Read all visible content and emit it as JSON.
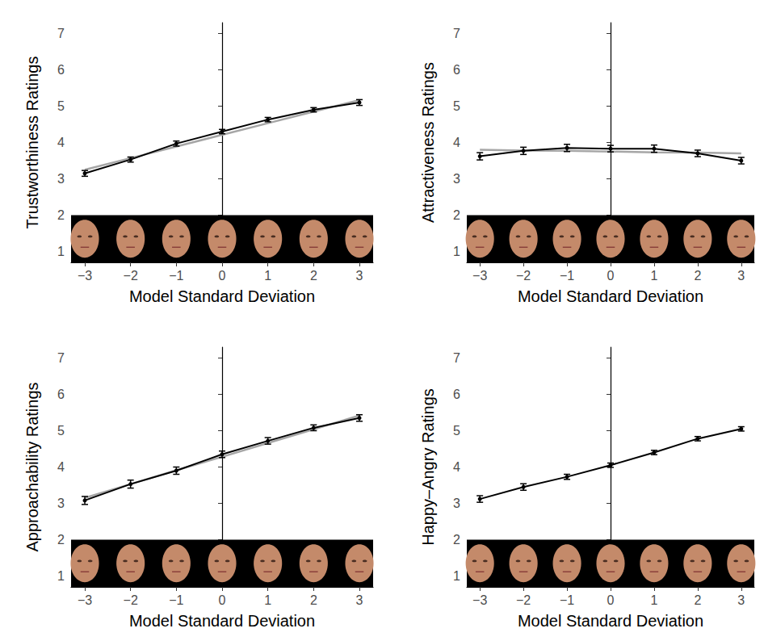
{
  "chart_data": [
    {
      "type": "line",
      "x_label": "Model Standard Deviation",
      "y_label": "Trustworthiness Ratings",
      "x": [
        -3,
        -2,
        -1,
        0,
        1,
        2,
        3
      ],
      "xlim": [
        -3.3,
        3.3
      ],
      "xticks": [
        -3,
        -2,
        -1,
        0,
        1,
        2,
        3
      ],
      "ylim": [
        0.7,
        7.3
      ],
      "yticks": [
        1,
        2,
        3,
        4,
        5,
        6,
        7
      ],
      "grid": false,
      "series": [
        {
          "color": "#a6a6a6",
          "marker": "none",
          "values": [
            3.25,
            3.57,
            3.89,
            4.21,
            4.53,
            4.85,
            5.17
          ]
        },
        {
          "color": "#000000",
          "marker": "circle",
          "values": [
            3.15,
            3.53,
            3.97,
            4.3,
            4.63,
            4.9,
            5.1
          ],
          "errors": [
            0.08,
            0.07,
            0.07,
            0.06,
            0.06,
            0.06,
            0.08
          ]
        }
      ]
    },
    {
      "type": "line",
      "x_label": "Model Standard Deviation",
      "y_label": "Attractiveness Ratings",
      "x": [
        -3,
        -2,
        -1,
        0,
        1,
        2,
        3
      ],
      "xlim": [
        -3.3,
        3.3
      ],
      "xticks": [
        -3,
        -2,
        -1,
        0,
        1,
        2,
        3
      ],
      "ylim": [
        0.7,
        7.3
      ],
      "yticks": [
        1,
        2,
        3,
        4,
        5,
        6,
        7
      ],
      "grid": false,
      "series": [
        {
          "color": "#a6a6a6",
          "marker": "none",
          "values": [
            3.8,
            3.78,
            3.77,
            3.75,
            3.73,
            3.72,
            3.7
          ]
        },
        {
          "color": "#000000",
          "marker": "circle",
          "values": [
            3.62,
            3.77,
            3.85,
            3.83,
            3.83,
            3.7,
            3.5
          ],
          "errors": [
            0.1,
            0.1,
            0.1,
            0.09,
            0.1,
            0.09,
            0.09
          ]
        }
      ]
    },
    {
      "type": "line",
      "x_label": "Model Standard Deviation",
      "y_label": "Approachability Ratings",
      "x": [
        -3,
        -2,
        -1,
        0,
        1,
        2,
        3
      ],
      "xlim": [
        -3.3,
        3.3
      ],
      "xticks": [
        -3,
        -2,
        -1,
        0,
        1,
        2,
        3
      ],
      "ylim": [
        0.7,
        7.3
      ],
      "yticks": [
        1,
        2,
        3,
        4,
        5,
        6,
        7
      ],
      "grid": false,
      "series": [
        {
          "color": "#a6a6a6",
          "marker": "none",
          "values": [
            3.15,
            3.53,
            3.91,
            4.28,
            4.66,
            5.04,
            5.42
          ]
        },
        {
          "color": "#000000",
          "marker": "circle",
          "values": [
            3.08,
            3.53,
            3.9,
            4.35,
            4.72,
            5.08,
            5.35
          ],
          "errors": [
            0.11,
            0.11,
            0.1,
            0.09,
            0.09,
            0.08,
            0.09
          ]
        }
      ]
    },
    {
      "type": "line",
      "x_label": "Model Standard Deviation",
      "y_label": "Happy–Angry Ratings",
      "x": [
        -3,
        -2,
        -1,
        0,
        1,
        2,
        3
      ],
      "xlim": [
        -3.3,
        3.3
      ],
      "xticks": [
        -3,
        -2,
        -1,
        0,
        1,
        2,
        3
      ],
      "ylim": [
        0.7,
        7.3
      ],
      "yticks": [
        1,
        2,
        3,
        4,
        5,
        6,
        7
      ],
      "grid": false,
      "series": [
        {
          "color": "#000000",
          "marker": "circle",
          "values": [
            3.12,
            3.45,
            3.73,
            4.05,
            4.4,
            4.78,
            5.05
          ],
          "errors": [
            0.09,
            0.09,
            0.07,
            0.06,
            0.06,
            0.06,
            0.06
          ]
        }
      ]
    }
  ]
}
